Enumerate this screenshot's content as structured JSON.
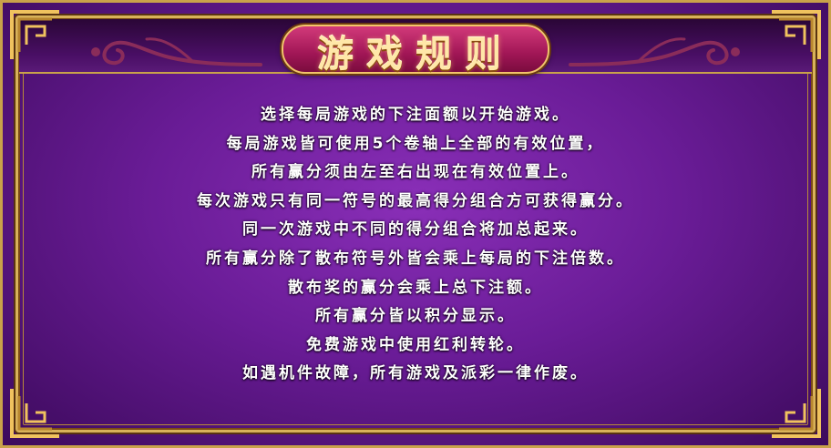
{
  "title": "游戏规则",
  "rules": [
    "选择每局游戏的下注面额以开始游戏。",
    "每局游戏皆可使用5个卷轴上全部的有效位置，",
    "所有赢分须由左至右出现在有效位置上。",
    "每次游戏只有同一符号的最高得分组合方可获得赢分。",
    "同一次游戏中不同的得分组合将加总起来。",
    "所有赢分除了散布符号外皆会乘上每局的下注倍数。",
    "散布奖的赢分会乘上总下注额。",
    "所有赢分皆以积分显示。",
    "免费游戏中使用红利转轮。",
    "如遇机件故障，所有游戏及派彩一律作废。"
  ],
  "colors": {
    "background": "#6a1c97",
    "frame": "#c9a24a",
    "plaque": "#a11656",
    "title_text": "#ffe7a8",
    "body_text": "#ffffff"
  },
  "icons": {
    "corners": "ornate-corner-icon",
    "swirls": "cloud-swirl-ornament-icon"
  }
}
